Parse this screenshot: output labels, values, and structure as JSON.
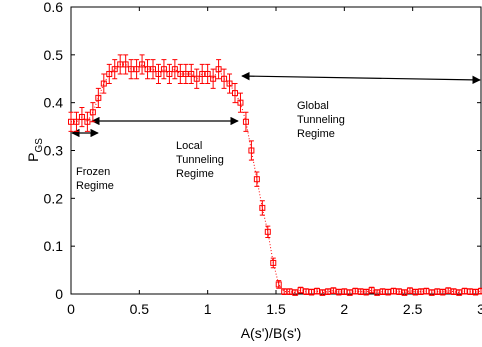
{
  "chart_data": {
    "type": "errorbar",
    "xlabel": "A(s')/B(s')",
    "ylabel": {
      "main": "P",
      "sub": "GS"
    },
    "annotations": [
      [
        "Frozen",
        "Regime"
      ],
      [
        "Local",
        "Tunneling",
        "Regime"
      ],
      [
        "Global",
        "Tunneling",
        "Regime"
      ]
    ],
    "xlim": [
      0,
      3
    ],
    "xticks": [
      0,
      0.5,
      1,
      1.5,
      2,
      2.5,
      3
    ],
    "ylim": [
      0,
      0.6
    ],
    "yticks": [
      0,
      0.1,
      0.2,
      0.3,
      0.4,
      0.5,
      0.6
    ],
    "color": "#ff0000",
    "x": [
      0,
      0.04,
      0.08,
      0.12,
      0.16,
      0.2,
      0.24,
      0.28,
      0.32,
      0.36,
      0.4,
      0.44,
      0.48,
      0.52,
      0.56,
      0.6,
      0.64,
      0.68,
      0.72,
      0.76,
      0.8,
      0.84,
      0.88,
      0.92,
      0.96,
      1.0,
      1.04,
      1.08,
      1.12,
      1.16,
      1.2,
      1.24,
      1.28,
      1.32,
      1.36,
      1.4,
      1.44,
      1.48,
      1.52,
      1.56,
      1.6,
      1.64,
      1.68,
      1.72,
      1.76,
      1.8,
      1.84,
      1.88,
      1.92,
      1.96,
      2.0,
      2.04,
      2.08,
      2.12,
      2.16,
      2.2,
      2.24,
      2.28,
      2.32,
      2.36,
      2.4,
      2.44,
      2.48,
      2.52,
      2.56,
      2.6,
      2.64,
      2.68,
      2.72,
      2.76,
      2.8,
      2.84,
      2.88,
      2.92,
      2.96,
      3.0
    ],
    "values": [
      0.36,
      0.36,
      0.37,
      0.36,
      0.38,
      0.41,
      0.44,
      0.46,
      0.47,
      0.48,
      0.48,
      0.47,
      0.47,
      0.48,
      0.47,
      0.47,
      0.46,
      0.47,
      0.46,
      0.47,
      0.46,
      0.46,
      0.46,
      0.45,
      0.46,
      0.46,
      0.45,
      0.47,
      0.45,
      0.44,
      0.42,
      0.4,
      0.36,
      0.3,
      0.24,
      0.18,
      0.13,
      0.065,
      0.02,
      0.005,
      0.005,
      0.003,
      0.008,
      0.005,
      0.004,
      0.006,
      0.003,
      0.005,
      0.007,
      0.004,
      0.005,
      0.003,
      0.006,
      0.005,
      0.004,
      0.008,
      0.003,
      0.005,
      0.004,
      0.006,
      0.005,
      0.003,
      0.007,
      0.004,
      0.005,
      0.006,
      0.003,
      0.005,
      0.004,
      0.007,
      0.005,
      0.003,
      0.006,
      0.005,
      0.004,
      0.006
    ],
    "errors": [
      0.02,
      0.02,
      0.02,
      0.02,
      0.02,
      0.02,
      0.02,
      0.02,
      0.02,
      0.02,
      0.02,
      0.02,
      0.02,
      0.02,
      0.02,
      0.02,
      0.02,
      0.02,
      0.02,
      0.02,
      0.02,
      0.02,
      0.02,
      0.02,
      0.02,
      0.02,
      0.02,
      0.02,
      0.02,
      0.02,
      0.02,
      0.02,
      0.02,
      0.02,
      0.015,
      0.015,
      0.012,
      0.01,
      0.008,
      0.006,
      0.006,
      0.006,
      0.006,
      0.006,
      0.006,
      0.006,
      0.006,
      0.006,
      0.006,
      0.006,
      0.006,
      0.006,
      0.006,
      0.006,
      0.006,
      0.006,
      0.006,
      0.006,
      0.006,
      0.006,
      0.006,
      0.006,
      0.006,
      0.006,
      0.006,
      0.006,
      0.006,
      0.006,
      0.006,
      0.006,
      0.006,
      0.006,
      0.006,
      0.006,
      0.006,
      0.006
    ]
  }
}
